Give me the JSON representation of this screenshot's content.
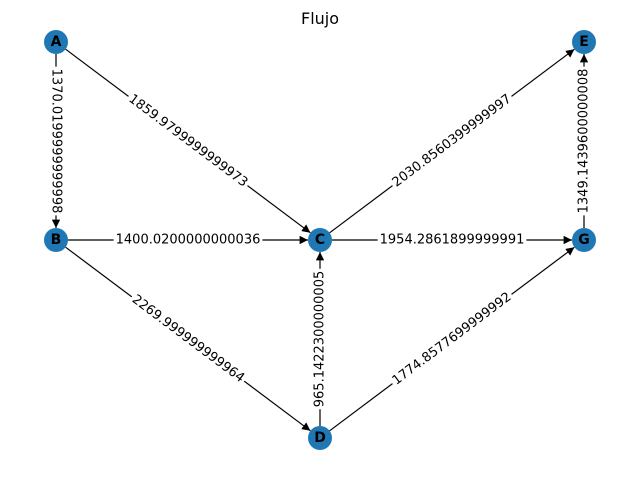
{
  "title": "Flujo",
  "colors": {
    "node": "#1f77b4",
    "edge": "#000000",
    "label_bg": "#ffffff"
  },
  "nodes": [
    {
      "id": "A",
      "label": "A"
    },
    {
      "id": "B",
      "label": "B"
    },
    {
      "id": "C",
      "label": "C"
    },
    {
      "id": "D",
      "label": "D"
    },
    {
      "id": "E",
      "label": "E"
    },
    {
      "id": "G",
      "label": "G"
    }
  ],
  "edges": [
    {
      "from": "A",
      "to": "B",
      "label": "1370.0199999999998"
    },
    {
      "from": "A",
      "to": "C",
      "label": "1859.9799999999973"
    },
    {
      "from": "B",
      "to": "C",
      "label": "1400.0200000000036"
    },
    {
      "from": "B",
      "to": "D",
      "label": "2269.999999999964"
    },
    {
      "from": "D",
      "to": "C",
      "label": "965.1422300000005"
    },
    {
      "from": "C",
      "to": "E",
      "label": "2030.8560399999997"
    },
    {
      "from": "C",
      "to": "G",
      "label": "1954.2861899999991"
    },
    {
      "from": "D",
      "to": "G",
      "label": "1774.8577699999992"
    },
    {
      "from": "G",
      "to": "E",
      "label": "1349.1439600000008"
    }
  ]
}
